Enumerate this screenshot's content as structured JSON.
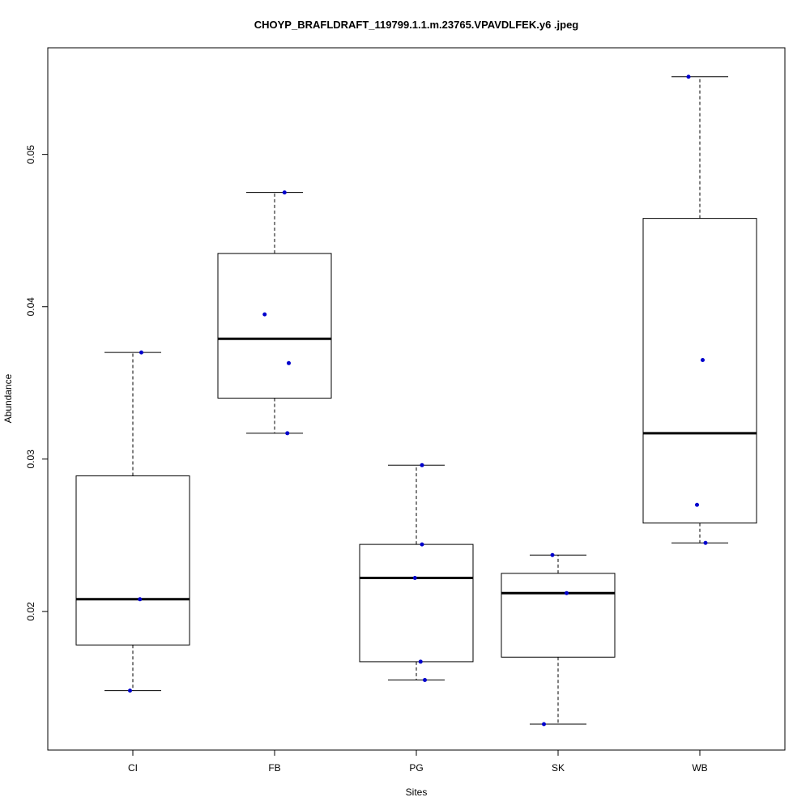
{
  "chart_data": {
    "type": "box",
    "title": "CHOYP_BRAFLDRAFT_119799.1.1.m.23765.VPAVDLFEK.y6 .jpeg",
    "xlabel": "Sites",
    "ylabel": "Abundance",
    "categories": [
      "CI",
      "FB",
      "PG",
      "SK",
      "WB"
    ],
    "ylim": [
      0.0109,
      0.057
    ],
    "yticks": [
      "0.02",
      "0.03",
      "0.04",
      "0.05"
    ],
    "ytick_values": [
      0.02,
      0.03,
      0.04,
      0.05
    ],
    "point_color": "#0000cc",
    "boxes": [
      {
        "category": "CI",
        "whisker_low": 0.0148,
        "q1": 0.0178,
        "median": 0.0208,
        "q3": 0.0289,
        "whisker_high": 0.037
      },
      {
        "category": "FB",
        "whisker_low": 0.0317,
        "q1": 0.034,
        "median": 0.0379,
        "q3": 0.0435,
        "whisker_high": 0.0475
      },
      {
        "category": "PG",
        "whisker_low": 0.0155,
        "q1": 0.0167,
        "median": 0.0222,
        "q3": 0.0244,
        "whisker_high": 0.0296
      },
      {
        "category": "SK",
        "whisker_low": 0.0126,
        "q1": 0.017,
        "median": 0.0212,
        "q3": 0.0225,
        "whisker_high": 0.0237
      },
      {
        "category": "WB",
        "whisker_low": 0.0245,
        "q1": 0.0258,
        "median": 0.0317,
        "q3": 0.0458,
        "whisker_high": 0.0551
      }
    ],
    "points": [
      {
        "category": "CI",
        "y": 0.037,
        "jitter": 0.06
      },
      {
        "category": "CI",
        "y": 0.0208,
        "jitter": 0.05
      },
      {
        "category": "CI",
        "y": 0.0148,
        "jitter": -0.02
      },
      {
        "category": "FB",
        "y": 0.0475,
        "jitter": 0.07
      },
      {
        "category": "FB",
        "y": 0.0395,
        "jitter": -0.07
      },
      {
        "category": "FB",
        "y": 0.0363,
        "jitter": 0.1
      },
      {
        "category": "FB",
        "y": 0.0317,
        "jitter": 0.09
      },
      {
        "category": "PG",
        "y": 0.0296,
        "jitter": 0.04
      },
      {
        "category": "PG",
        "y": 0.0244,
        "jitter": 0.04
      },
      {
        "category": "PG",
        "y": 0.0222,
        "jitter": -0.01
      },
      {
        "category": "PG",
        "y": 0.0167,
        "jitter": 0.03
      },
      {
        "category": "PG",
        "y": 0.0155,
        "jitter": 0.06
      },
      {
        "category": "SK",
        "y": 0.0237,
        "jitter": -0.04
      },
      {
        "category": "SK",
        "y": 0.0212,
        "jitter": 0.06
      },
      {
        "category": "SK",
        "y": 0.0126,
        "jitter": -0.1
      },
      {
        "category": "WB",
        "y": 0.0551,
        "jitter": -0.08
      },
      {
        "category": "WB",
        "y": 0.0365,
        "jitter": 0.02
      },
      {
        "category": "WB",
        "y": 0.027,
        "jitter": -0.02
      },
      {
        "category": "WB",
        "y": 0.0245,
        "jitter": 0.04
      }
    ]
  }
}
